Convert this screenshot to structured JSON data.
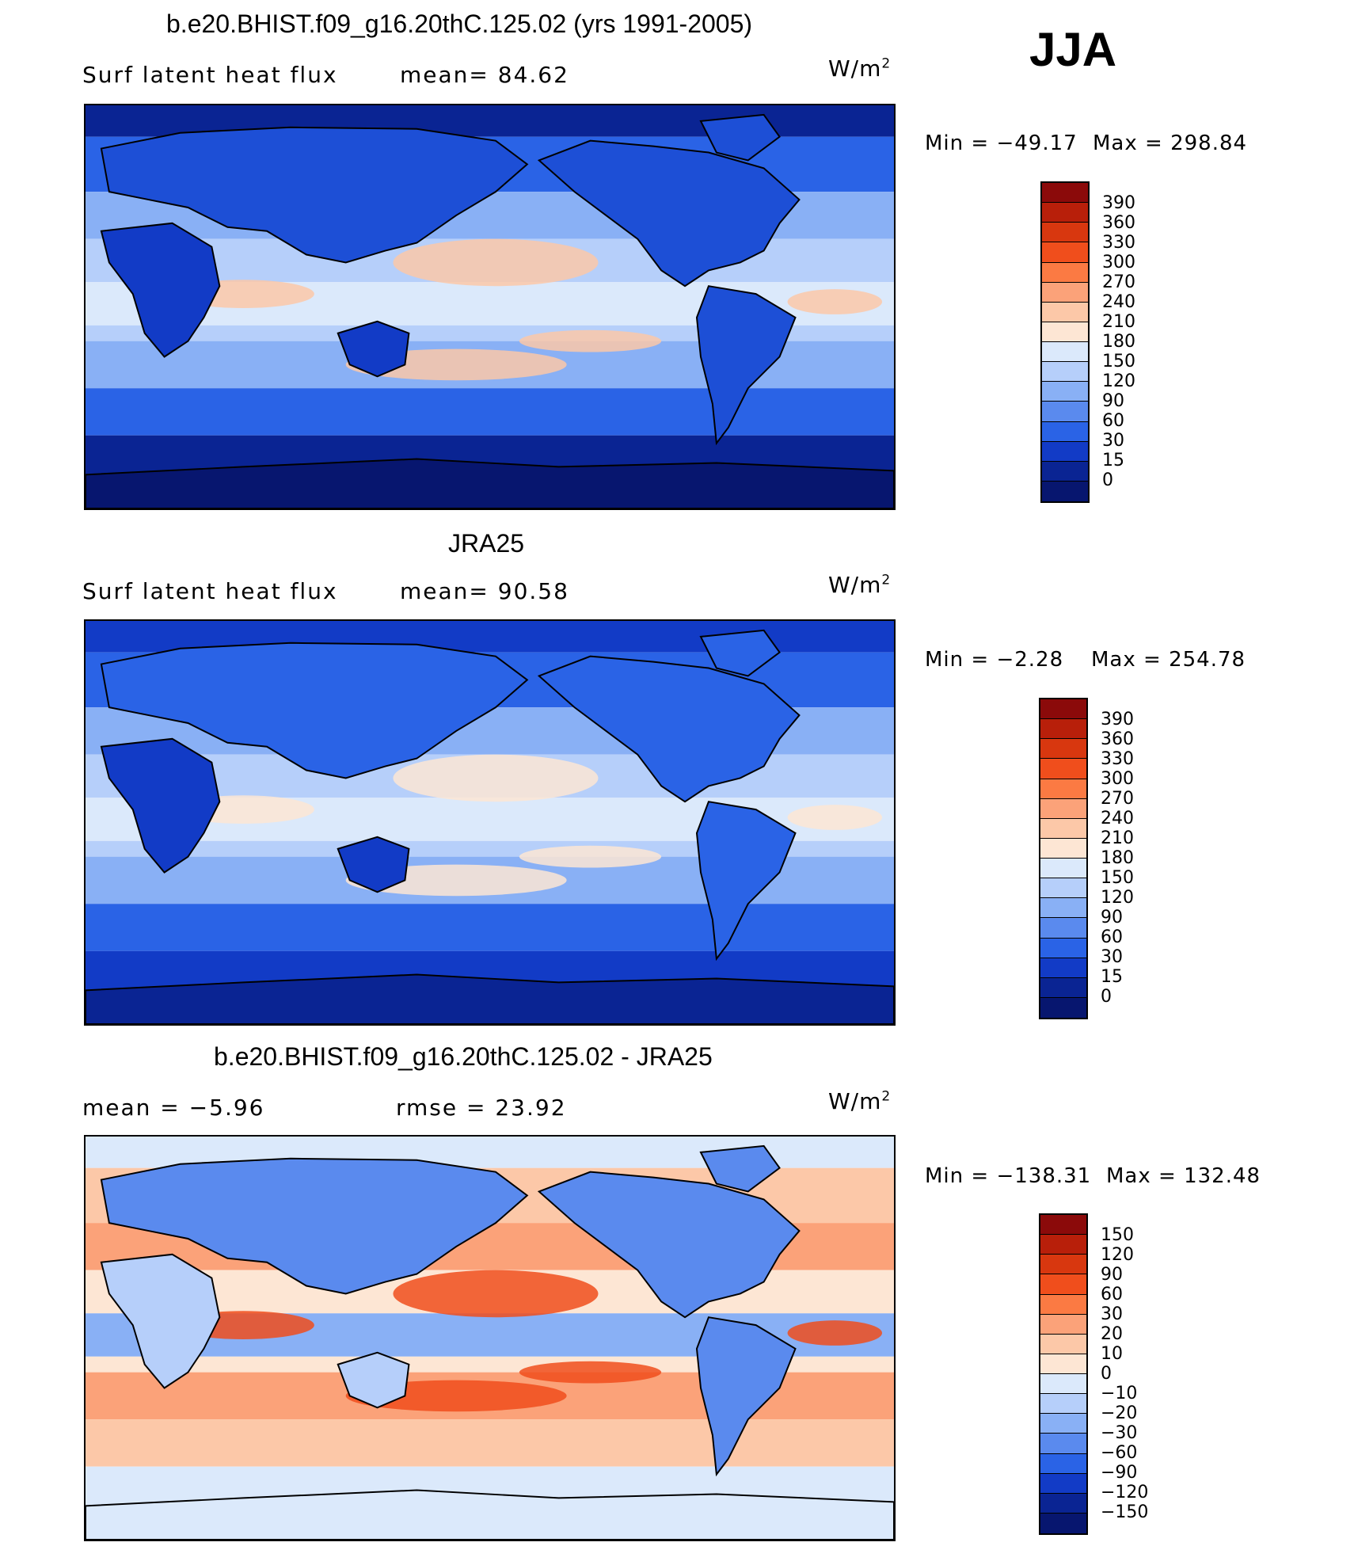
{
  "season": "JJA",
  "panels": [
    {
      "title": "b.e20.BHIST.f09_g16.20thC.125.02 (yrs 1991-2005)",
      "left_text": "Surf latent heat flux",
      "right_text": "mean=   84.62",
      "units": "W/m",
      "units_exp": "2",
      "min_label": "Min  =  −49.17",
      "max_label": "Max  =  298.84",
      "colorbar": {
        "labels": [
          "390",
          "360",
          "330",
          "300",
          "270",
          "240",
          "210",
          "180",
          "150",
          "120",
          "90",
          "60",
          "30",
          "15",
          "0"
        ],
        "colors": [
          "#8b0a0a",
          "#b81f0a",
          "#d8370f",
          "#f04e1c",
          "#fb7a43",
          "#fba279",
          "#fcc8a8",
          "#fde6d4",
          "#dbe9fb",
          "#b6cffa",
          "#89b0f5",
          "#5a8aee",
          "#2a63e6",
          "#123bc6",
          "#0a2493",
          "#07166f"
        ]
      },
      "field_colors": {
        "ocean_polar": "#0a2493",
        "ocean_mid": "#2a63e6",
        "ocean_sub": "#89b0f5",
        "ocean_trop": "#b6cffa",
        "ocean_warm": "#dbe9fb",
        "hot": "#fcc8a8",
        "land": "#1d4fd6",
        "desert": "#123bc6",
        "ice": "#07166f"
      }
    },
    {
      "title": "JRA25",
      "left_text": "Surf latent heat flux",
      "right_text": "mean=   90.58",
      "units": "W/m",
      "units_exp": "2",
      "min_label": "Min  =   −2.28",
      "max_label": "Max  =  254.78",
      "colorbar": {
        "labels": [
          "390",
          "360",
          "330",
          "300",
          "270",
          "240",
          "210",
          "180",
          "150",
          "120",
          "90",
          "60",
          "30",
          "15",
          "0"
        ],
        "colors": [
          "#8b0a0a",
          "#b81f0a",
          "#d8370f",
          "#f04e1c",
          "#fb7a43",
          "#fba279",
          "#fcc8a8",
          "#fde6d4",
          "#dbe9fb",
          "#b6cffa",
          "#89b0f5",
          "#5a8aee",
          "#2a63e6",
          "#123bc6",
          "#0a2493",
          "#07166f"
        ]
      },
      "field_colors": {
        "ocean_polar": "#123bc6",
        "ocean_mid": "#2a63e6",
        "ocean_sub": "#89b0f5",
        "ocean_trop": "#b6cffa",
        "ocean_warm": "#dbe9fb",
        "hot": "#fde6d4",
        "land": "#2a63e6",
        "desert": "#123bc6",
        "ice": "#0a2493"
      }
    },
    {
      "title": "b.e20.BHIST.f09_g16.20thC.125.02 - JRA25",
      "left_text": "mean =    −5.96",
      "right_text": "rmse =    23.92",
      "units": "W/m",
      "units_exp": "2",
      "min_label": "Min  =  −138.31",
      "max_label": "Max  =  132.48",
      "colorbar": {
        "labels": [
          "150",
          "120",
          "90",
          "60",
          "30",
          "20",
          "10",
          "0",
          "−10",
          "−20",
          "−30",
          "−60",
          "−90",
          "−120",
          "−150"
        ],
        "colors": [
          "#8b0a0a",
          "#b81f0a",
          "#d8370f",
          "#f04e1c",
          "#fb7a43",
          "#fba279",
          "#fcc8a8",
          "#fde6d4",
          "#dbe9fb",
          "#b6cffa",
          "#89b0f5",
          "#5a8aee",
          "#2a63e6",
          "#123bc6",
          "#0a2493",
          "#07166f"
        ]
      },
      "field_colors": {
        "ocean_polar": "#dbe9fb",
        "ocean_mid": "#fcc8a8",
        "ocean_sub": "#fba279",
        "ocean_trop": "#fde6d4",
        "ocean_warm": "#89b0f5",
        "hot": "#f04e1c",
        "land": "#5a8aee",
        "desert": "#b6cffa",
        "ice": "#dbe9fb"
      }
    }
  ]
}
